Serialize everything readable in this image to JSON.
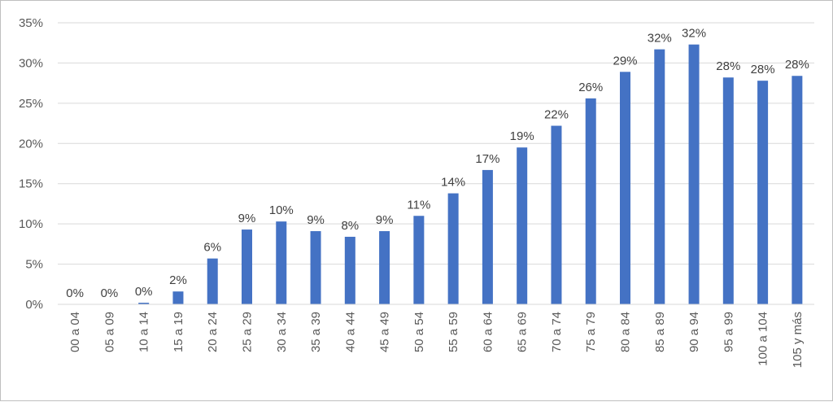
{
  "chart_data": {
    "type": "bar",
    "title": "",
    "xlabel": "",
    "ylabel": "",
    "ylim": [
      0,
      0.35
    ],
    "yticks": [
      0,
      0.05,
      0.1,
      0.15,
      0.2,
      0.25,
      0.3,
      0.35
    ],
    "ytick_labels": [
      "0%",
      "5%",
      "10%",
      "15%",
      "20%",
      "25%",
      "30%",
      "35%"
    ],
    "grid": true,
    "bar_color": "#4472c4",
    "categories": [
      "00 a 04",
      "05 a 09",
      "10 a 14",
      "15 a 19",
      "20 a 24",
      "25 a 29",
      "30 a 34",
      "35 a 39",
      "40 a 44",
      "45 a 49",
      "50 a 54",
      "55 a 59",
      "60 a 64",
      "65 a 69",
      "70 a 74",
      "75 a 79",
      "80 a 84",
      "85 a 89",
      "90 a 94",
      "95 a 99",
      "100 a 104",
      "105 y más"
    ],
    "values": [
      0.0,
      0.0,
      0.002,
      0.016,
      0.057,
      0.093,
      0.103,
      0.091,
      0.084,
      0.091,
      0.11,
      0.138,
      0.167,
      0.195,
      0.222,
      0.256,
      0.289,
      0.317,
      0.323,
      0.282,
      0.278,
      0.284
    ],
    "data_labels": [
      "0%",
      "0%",
      "0%",
      "2%",
      "6%",
      "9%",
      "10%",
      "9%",
      "8%",
      "9%",
      "11%",
      "14%",
      "17%",
      "19%",
      "22%",
      "26%",
      "29%",
      "32%",
      "32%",
      "28%",
      "28%",
      "28%"
    ]
  }
}
